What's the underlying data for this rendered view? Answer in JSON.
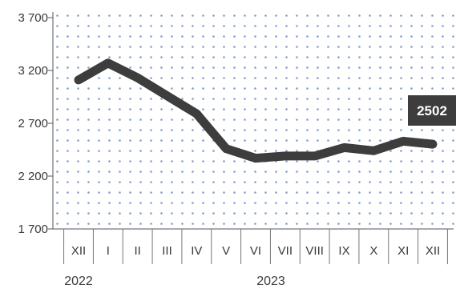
{
  "chart_data": {
    "type": "line",
    "categories": [
      "XII",
      "I",
      "II",
      "III",
      "IV",
      "V",
      "VI",
      "VII",
      "VIII",
      "IX",
      "X",
      "XI",
      "XII"
    ],
    "series": [
      {
        "values": [
          3110,
          3270,
          3130,
          2960,
          2790,
          2460,
          2370,
          2390,
          2390,
          2470,
          2440,
          2530,
          2502
        ]
      }
    ],
    "yticks": [
      "3 700",
      "3 200",
      "2 700",
      "2 200",
      "1 700"
    ],
    "ytick_values": [
      3700,
      3200,
      2700,
      2200,
      1700
    ],
    "ylim": [
      1700,
      3700
    ],
    "year_labels": [
      "2022",
      "2023"
    ],
    "last_value_label": "2502",
    "grid": "dotted background",
    "colors": {
      "line": "#3d3d3d",
      "dots": "#7f9fc9",
      "label_bg": "#3d3d3d",
      "label_text": "#ffffff",
      "axis": "#555555"
    }
  }
}
